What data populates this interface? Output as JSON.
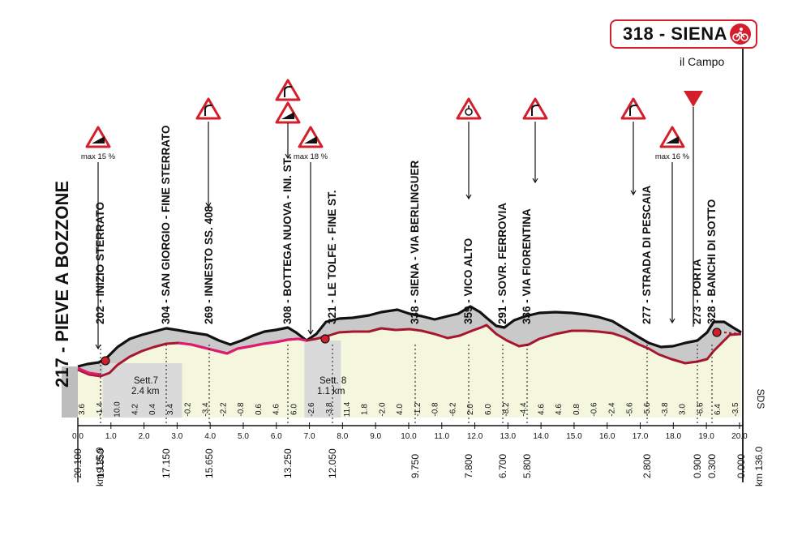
{
  "finish": {
    "label": "318 - SIENA",
    "sub": "il Campo"
  },
  "start": {
    "label": "217 - PIEVE A BOZZONE"
  },
  "points": [
    {
      "km": "20.100",
      "label": ""
    },
    {
      "km": "19.350",
      "label": "202 - INIZIO STERRATO"
    },
    {
      "km": "17.150",
      "label": "304 - SAN GIORGIO - FINE STERRATO"
    },
    {
      "km": "15.650",
      "label": "269 - INNESTO SS. 408"
    },
    {
      "km": "13.250",
      "label": "308 - BOTTEGA NUOVA - INI. ST."
    },
    {
      "km": "12.050",
      "label": "321 - LE TOLFE - FINE ST."
    },
    {
      "km": "9.750",
      "label": "338 - SIENA - VIA BERLINGUER"
    },
    {
      "km": "7.800",
      "label": "359 - VICO ALTO"
    },
    {
      "km": "6.700",
      "label": "291 - SOVR. FERROVIA"
    },
    {
      "km": "5.800",
      "label": "336 - VIA FIORENTINA"
    },
    {
      "km": "2.800",
      "label": "277 - STRADA DI PESCAIA"
    },
    {
      "km": "0.900",
      "label": "273 - PORTA"
    },
    {
      "km": "0.300",
      "label": "328 - BANCHI DI SOTTO"
    },
    {
      "km": "0.000",
      "label": ""
    }
  ],
  "km_start": "km 115.9",
  "km_end": "km 136.0",
  "distance_ticks": [
    "0.0",
    "1.0",
    "2.0",
    "3.0",
    "4.0",
    "5.0",
    "6.0",
    "7.0",
    "8.0",
    "9.0",
    "10.0",
    "11.0",
    "12.0",
    "13.0",
    "14.0",
    "15.0",
    "16.0",
    "17.0",
    "18.0",
    "19.0",
    "20.0"
  ],
  "gradients": [
    "3.6",
    "-1.4",
    "10.0",
    "4.2",
    "0.4",
    "3.4",
    "-0.2",
    "-3.4",
    "-2.2",
    "-0.8",
    "0.6",
    "4.6",
    "6.0",
    "-2.6",
    "-3.8",
    "11.4",
    "1.8",
    "-2.0",
    "4.0",
    "-1.2",
    "-0.8",
    "-6.2",
    "2.0",
    "6.0",
    "-8.2",
    "-4.4",
    "4.6",
    "4.6",
    "0.8",
    "-0.6",
    "-2.4",
    "-5.6",
    "-5.6",
    "-3.8",
    "3.0",
    "-6.6",
    "6.4",
    "-3.5"
  ],
  "sectors": [
    {
      "name": "Sett.7",
      "length": "2.4 km"
    },
    {
      "name": "Sett. 8",
      "length": "1.1 km"
    }
  ],
  "warnings": [
    {
      "text": "max 15 %"
    },
    {
      "text": "max 18 %"
    },
    {
      "text": "max 16 %"
    }
  ],
  "sds": "SDS",
  "colors": {
    "route": "#a7162f",
    "gravel": "#e01a71",
    "accent": "#d21f2b",
    "fill": "#c9c9c9",
    "fill_light": "#f4f7de"
  }
}
